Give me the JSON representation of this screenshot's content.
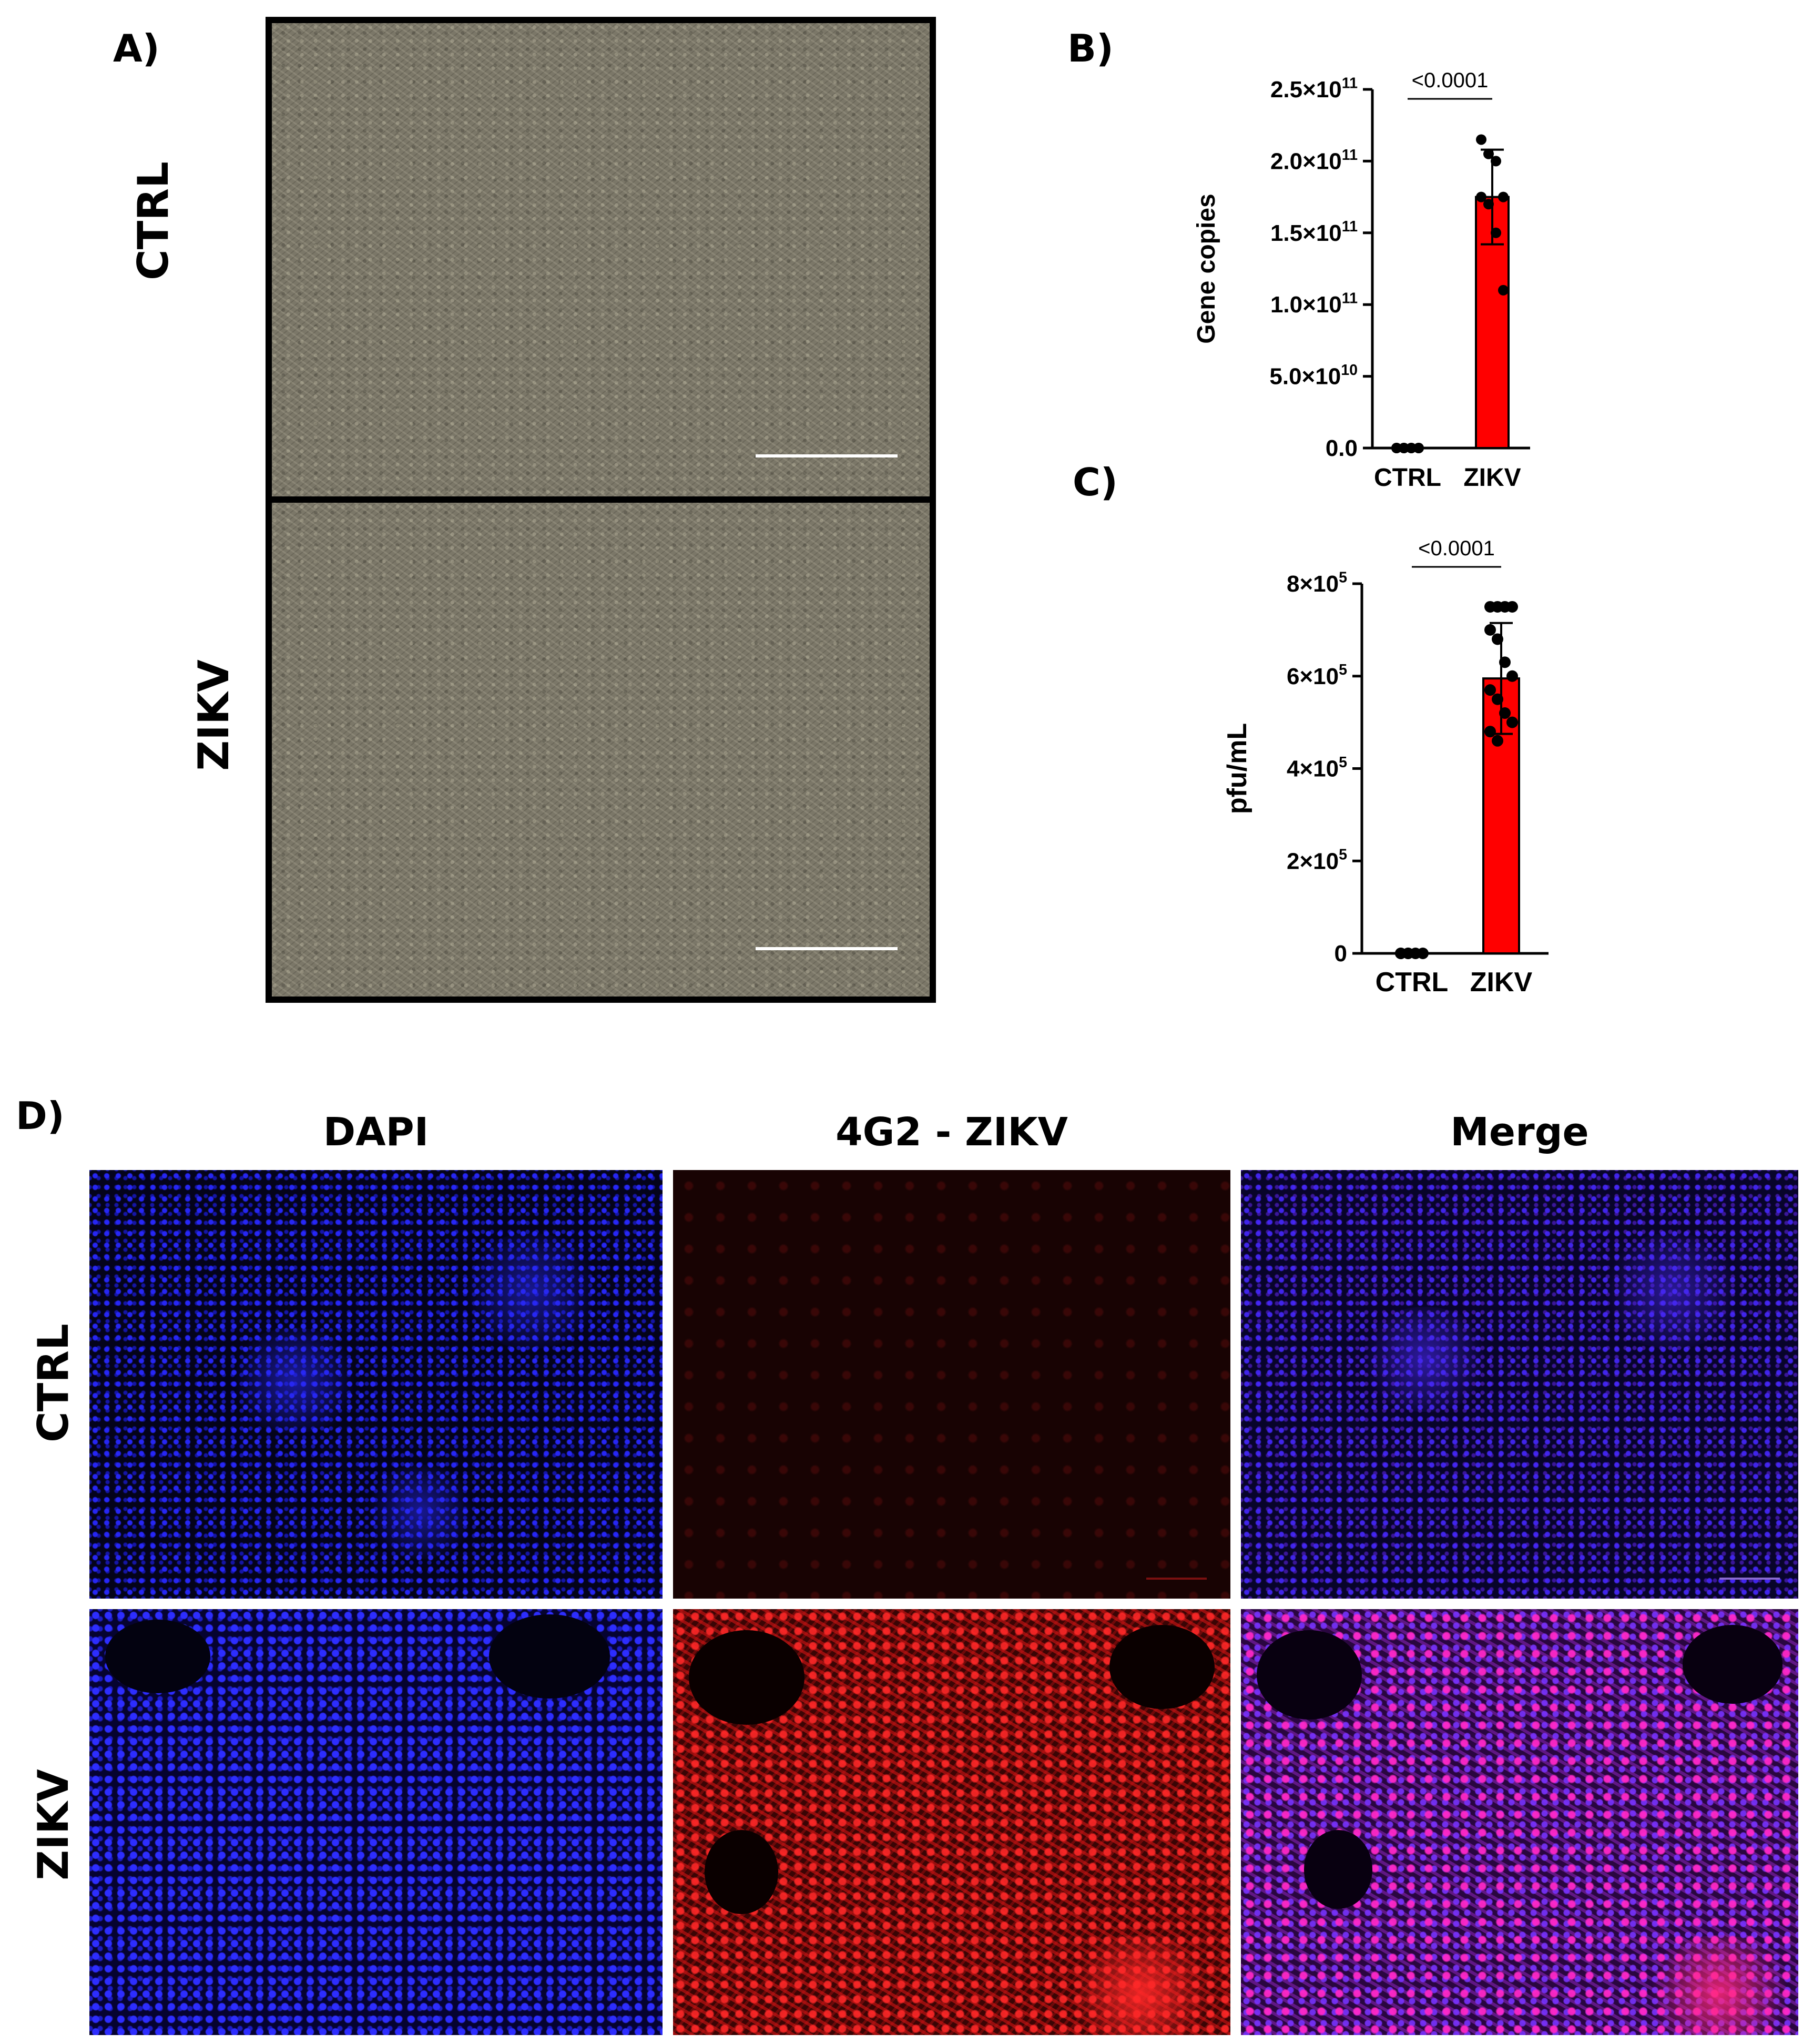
{
  "panel_labels": {
    "a": "A)",
    "b": "B)",
    "c": "C)",
    "d": "D)"
  },
  "panel_a": {
    "row_labels": [
      "CTRL",
      "ZIKV"
    ]
  },
  "panel_d": {
    "column_labels": [
      "DAPI",
      "4G2 - ZIKV",
      "Merge"
    ],
    "row_labels": [
      "CTRL",
      "ZIKV"
    ]
  },
  "chart_data": [
    {
      "type": "bar",
      "panel": "B)",
      "categories": [
        "CTRL",
        "ZIKV"
      ],
      "values": [
        0,
        175000000000
      ],
      "error_bars": [
        0,
        33000000000
      ],
      "points": [
        [
          0,
          0,
          0,
          0,
          0,
          0,
          0,
          0
        ],
        [
          215000000000,
          205000000000,
          200000000000,
          175000000000,
          175000000000,
          170000000000,
          150000000000,
          110000000000
        ]
      ],
      "ylabel": "Gene copies",
      "yticks": [
        "0.0",
        "5.0×10^10",
        "1.0×10^11",
        "1.5×10^11",
        "2.0×10^11",
        "2.5×10^11"
      ],
      "ylim": [
        0,
        250000000000
      ],
      "significance": "<0.0001",
      "bar_colors": [
        "#ff0000",
        "#ff0000"
      ]
    },
    {
      "type": "bar",
      "panel": "C)",
      "categories": [
        "CTRL",
        "ZIKV"
      ],
      "values": [
        0,
        595000
      ],
      "error_bars": [
        0,
        120000
      ],
      "points": [
        [
          0,
          0,
          0,
          0,
          0,
          0
        ],
        [
          750000,
          750000,
          750000,
          750000,
          700000,
          680000,
          630000,
          600000,
          570000,
          550000,
          520000,
          500000,
          480000,
          460000
        ]
      ],
      "ylabel": "pfu/mL",
      "yticks": [
        "0",
        "2×10^5",
        "4×10^5",
        "6×10^5",
        "8×10^5"
      ],
      "ylim": [
        0,
        800000
      ],
      "significance": "<0.0001",
      "bar_colors": [
        "#ff0000",
        "#ff0000"
      ]
    }
  ]
}
